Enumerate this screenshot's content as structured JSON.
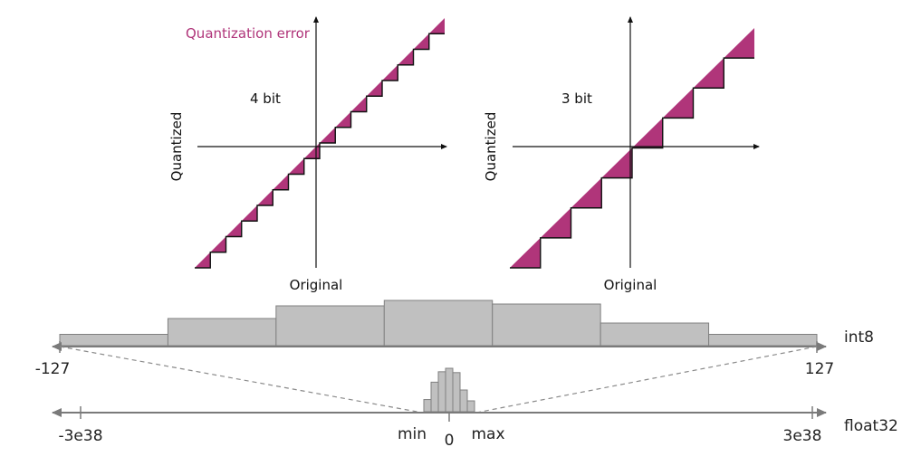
{
  "colors": {
    "error_fill": "#b0357a",
    "step_line": "#111111",
    "axis": "#111111",
    "histogram_fill": "#c0c0c0",
    "histogram_stroke": "#808080",
    "range_axis": "#7a7a7a"
  },
  "plots": [
    {
      "id": "four-bit",
      "label": "4 bit",
      "x_axis_label": "Original",
      "y_axis_label": "Quantized",
      "bits": 4,
      "steps": 16,
      "annotation": "Quantization error"
    },
    {
      "id": "three-bit",
      "label": "3 bit",
      "x_axis_label": "Original",
      "y_axis_label": "Quantized",
      "bits": 3,
      "steps": 8
    }
  ],
  "int8_axis": {
    "name": "int8",
    "min_label": "-127",
    "max_label": "127",
    "bins": [
      {
        "bin": 1,
        "relative_height": 0.25
      },
      {
        "bin": 2,
        "relative_height": 0.6
      },
      {
        "bin": 3,
        "relative_height": 0.88
      },
      {
        "bin": 4,
        "relative_height": 1.0
      },
      {
        "bin": 5,
        "relative_height": 0.92
      },
      {
        "bin": 6,
        "relative_height": 0.5
      },
      {
        "bin": 7,
        "relative_height": 0.25
      }
    ]
  },
  "float32_axis": {
    "name": "float32",
    "min_label": "-3e38",
    "max_label": "3e38",
    "center_label": "0",
    "range_min_label": "min",
    "range_max_label": "max",
    "bins": [
      {
        "bin": 1,
        "relative_height": 0.28
      },
      {
        "bin": 2,
        "relative_height": 0.68
      },
      {
        "bin": 3,
        "relative_height": 0.92
      },
      {
        "bin": 4,
        "relative_height": 1.0
      },
      {
        "bin": 5,
        "relative_height": 0.9
      },
      {
        "bin": 6,
        "relative_height": 0.5
      },
      {
        "bin": 7,
        "relative_height": 0.25
      }
    ]
  }
}
